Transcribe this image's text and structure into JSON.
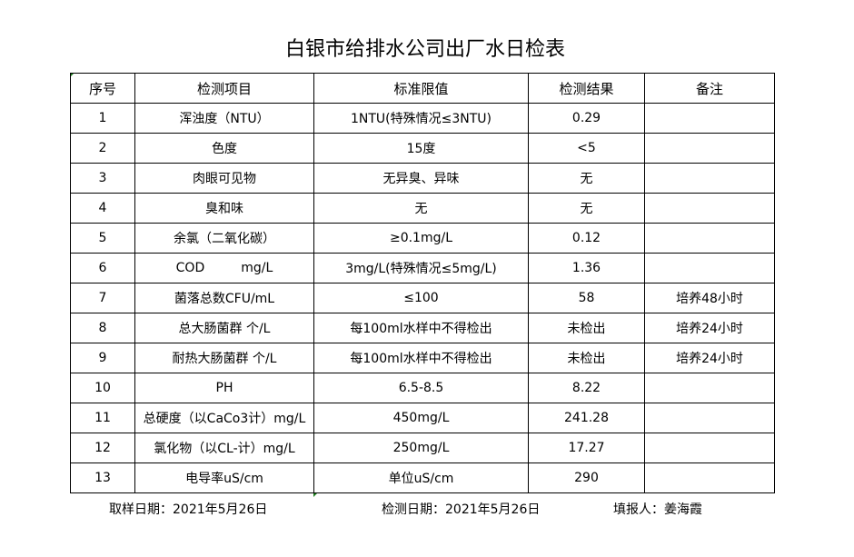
{
  "title": "白银市给排水公司出厂水日检表",
  "table": {
    "headers": [
      "序号",
      "检测项目",
      "标准限值",
      "检测结果",
      "备注"
    ],
    "rows": [
      {
        "no": "1",
        "item": "浑浊度（NTU）",
        "standard": "1NTU(特殊情况≤3NTU)",
        "result": "0.29"
      },
      {
        "no": "2",
        "item": "色度",
        "standard": "15度",
        "result": "<5"
      },
      {
        "no": "3",
        "item": "肉眼可见物",
        "standard": "无异臭、异味",
        "result": "无"
      },
      {
        "no": "4",
        "item": "臭和味",
        "standard": "无",
        "result": "无"
      },
      {
        "no": "5",
        "item": "余氯（二氧化碳）",
        "standard": "≥0.1mg/L",
        "result": "0.12"
      },
      {
        "no": "6",
        "item": "COD         mg/L",
        "standard": "3mg/L(特殊情况≤5mg/L)",
        "result": "1.36"
      },
      {
        "no": "7",
        "item": "菌落总数CFU/mL",
        "standard": "≤100",
        "result": "58",
        "note": "培养48小时"
      },
      {
        "no": "8",
        "item": "总大肠菌群 个/L",
        "standard": "每100ml水样中不得检出",
        "result": "未检出",
        "note": "培养24小时"
      },
      {
        "no": "9",
        "item": "耐热大肠菌群 个/L",
        "standard": "每100ml水样中不得检出",
        "result": "未检出",
        "note": "培养24小时"
      },
      {
        "no": "10",
        "item": "PH",
        "standard": "6.5-8.5",
        "result": "8.22"
      },
      {
        "no": "11",
        "item": "总硬度（以CaCo3计）mg/L",
        "standard": "450mg/L",
        "result": "241.28"
      },
      {
        "no": "12",
        "item": "氯化物（以CL-计）mg/L",
        "standard": "250mg/L",
        "result": "17.27"
      },
      {
        "no": "13",
        "item": "电导率uS/cm",
        "standard": "单位uS/cm",
        "result": "290"
      }
    ]
  },
  "footer": {
    "sampling_date": "取样日期：2021年5月26日",
    "test_date": "检测日期：2021年5月26日",
    "reporter": "填报人：姜海霞"
  }
}
